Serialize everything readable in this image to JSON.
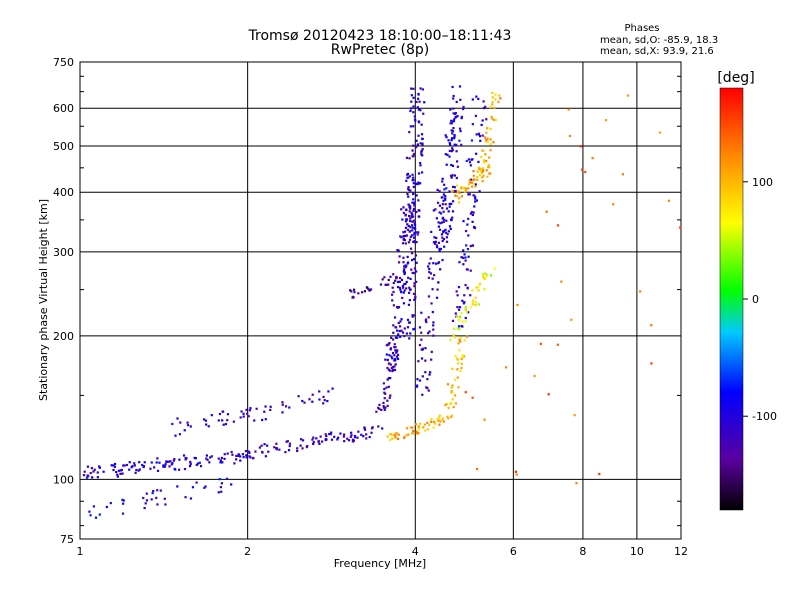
{
  "chart_data": {
    "type": "scatter",
    "title": "Tromsø 20120423 18:10:00–18:11:43",
    "subtitle": "RwPretec (8p)",
    "xlabel": "Frequency [MHz]",
    "ylabel": "Stationary phase Virtual Height [km]",
    "x_scale": "log",
    "y_scale": "log",
    "xlim": [
      1,
      12
    ],
    "ylim": [
      75,
      750
    ],
    "x_ticks": [
      1,
      2,
      4,
      6,
      8,
      10,
      12
    ],
    "x_tick_labels": [
      "1",
      "2",
      "4",
      "6",
      "8",
      "10",
      "12"
    ],
    "y_ticks": [
      75,
      100,
      200,
      300,
      400,
      500,
      600,
      750
    ],
    "y_tick_labels": [
      "75",
      "100",
      "200",
      "300",
      "400",
      "500",
      "600",
      "750"
    ],
    "grid": true,
    "phases": {
      "heading": "Phases",
      "line_o": "mean, sd,O: -85.9, 18.3",
      "line_x": "mean, sd,X:  93.9, 21.6"
    },
    "colorbar": {
      "label": "[deg]",
      "ticks": [
        100,
        0,
        -100
      ],
      "tick_labels": [
        "100",
        "0",
        "-100"
      ],
      "range": [
        -180,
        180
      ],
      "colors": [
        "#000000",
        "#7a00b5",
        "#0000ff",
        "#00c8ff",
        "#00ff00",
        "#ffff00",
        "#ff8800",
        "#ff0000"
      ]
    },
    "series": [
      {
        "description_key": "dense traces",
        "traces": [
          {
            "f0": 1.0,
            "f1": 1.95,
            "h0": 103,
            "h1": 112,
            "phase": -100,
            "n": 110,
            "spread": 0.04
          },
          {
            "f0": 1.95,
            "f1": 3.4,
            "h0": 112,
            "h1": 127,
            "phase": -110,
            "n": 90,
            "spread": 0.04
          },
          {
            "f0": 1.45,
            "f1": 3.0,
            "h0": 128,
            "h1": 150,
            "phase": -105,
            "n": 60,
            "spread": 0.05
          },
          {
            "f0": 3.4,
            "f1": 3.75,
            "h0": 127,
            "h1": 200,
            "phase": -115,
            "n": 45,
            "spread": 0.04
          },
          {
            "f0": 3.6,
            "f1": 3.95,
            "h0": 170,
            "h1": 420,
            "phase": -110,
            "n": 110,
            "spread": 0.05
          },
          {
            "f0": 3.85,
            "f1": 4.05,
            "h0": 200,
            "h1": 640,
            "phase": -105,
            "n": 180,
            "spread": 0.06
          },
          {
            "f0": 3.05,
            "f1": 3.7,
            "h0": 245,
            "h1": 265,
            "phase": -130,
            "n": 30,
            "spread": 0.03
          },
          {
            "f0": 4.1,
            "f1": 4.45,
            "h0": 150,
            "h1": 400,
            "phase": -110,
            "n": 80,
            "spread": 0.06
          },
          {
            "f0": 4.45,
            "f1": 4.8,
            "h0": 300,
            "h1": 640,
            "phase": -100,
            "n": 120,
            "spread": 0.06
          },
          {
            "f0": 4.8,
            "f1": 5.25,
            "h0": 210,
            "h1": 630,
            "phase": -100,
            "n": 90,
            "spread": 0.06
          },
          {
            "f0": 3.6,
            "f1": 4.55,
            "h0": 122,
            "h1": 135,
            "phase": 105,
            "n": 60,
            "spread": 0.03
          },
          {
            "f0": 4.55,
            "f1": 4.9,
            "h0": 135,
            "h1": 200,
            "phase": 100,
            "n": 40,
            "spread": 0.04
          },
          {
            "f0": 4.7,
            "f1": 5.4,
            "h0": 390,
            "h1": 450,
            "phase": 110,
            "n": 50,
            "spread": 0.04
          },
          {
            "f0": 5.3,
            "f1": 5.6,
            "h0": 450,
            "h1": 640,
            "phase": 105,
            "n": 40,
            "spread": 0.04
          },
          {
            "f0": 4.7,
            "f1": 5.5,
            "h0": 200,
            "h1": 280,
            "phase": 60,
            "n": 40,
            "spread": 0.05
          },
          {
            "f0": 1.0,
            "f1": 1.9,
            "h0": 85,
            "h1": 98,
            "phase": -100,
            "n": 40,
            "spread": 0.05
          },
          {
            "f0": 5.8,
            "f1": 11.0,
            "h0": 90,
            "h1": 700,
            "phase": 140,
            "n": 40,
            "spread": 0.6
          }
        ]
      }
    ]
  }
}
